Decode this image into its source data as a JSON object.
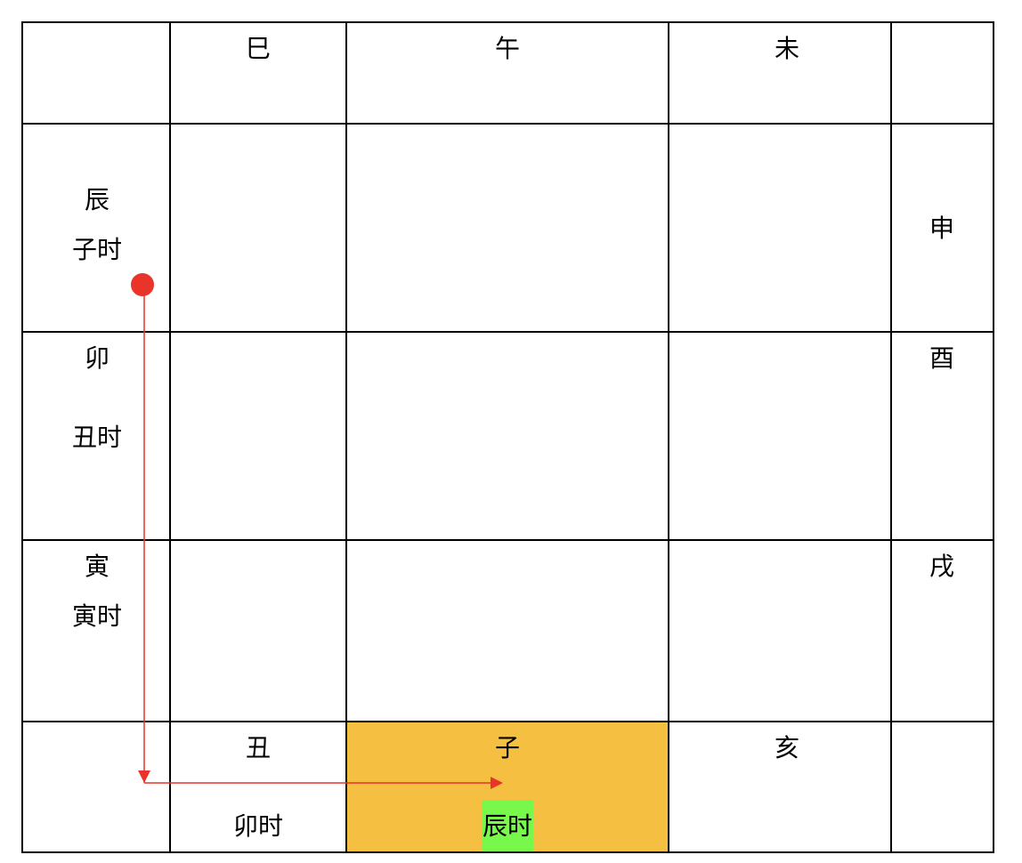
{
  "top_row": {
    "si": "巳",
    "wu": "午",
    "wei": "未"
  },
  "left_column": {
    "chen": {
      "branch": "辰",
      "hour": "子时"
    },
    "mao": {
      "branch": "卯",
      "hour": "丑时"
    },
    "yin": {
      "branch": "寅",
      "hour": "寅时"
    }
  },
  "right_column": {
    "shen": "申",
    "you": "酉",
    "xu": "戌"
  },
  "bottom_row": {
    "chou": {
      "branch": "丑",
      "hour": "卯时"
    },
    "zi": {
      "branch": "子",
      "hour": "辰时"
    },
    "hai": "亥"
  },
  "colors": {
    "highlight_cell": "#F5BF42",
    "highlight_label": "#77F84B",
    "arrow": "#E8342A"
  }
}
